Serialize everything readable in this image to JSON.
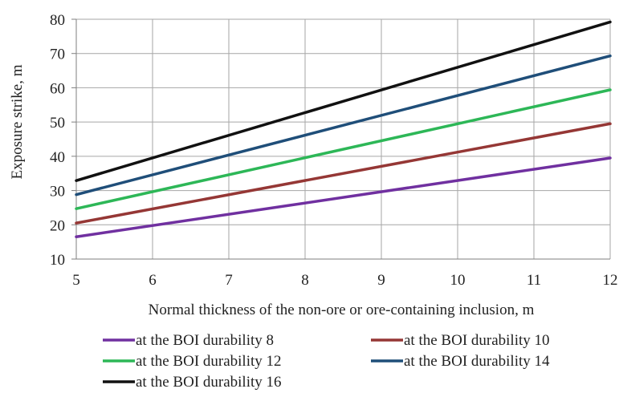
{
  "chart_data": {
    "type": "line",
    "xlabel": "Normal thickness of the non-ore or ore-containing inclusion, m",
    "ylabel": "Exposure strike, m",
    "xlim": [
      5,
      12
    ],
    "ylim": [
      10,
      80
    ],
    "x_ticks": [
      5,
      6,
      7,
      8,
      9,
      10,
      11,
      12
    ],
    "y_ticks": [
      10,
      20,
      30,
      40,
      50,
      60,
      70,
      80
    ],
    "grid": true,
    "legend_position": "bottom",
    "series": [
      {
        "name": "at the BOI durability 8",
        "color": "#7030a0",
        "x": [
          5,
          12
        ],
        "y": [
          16.5,
          39.5
        ]
      },
      {
        "name": "at the BOI durability 10",
        "color": "#953735",
        "x": [
          5,
          12
        ],
        "y": [
          20.5,
          49.5
        ]
      },
      {
        "name": "at the BOI durability 12",
        "color": "#2db757",
        "x": [
          5,
          12
        ],
        "y": [
          24.7,
          59.4
        ]
      },
      {
        "name": "at the BOI durability 14",
        "color": "#1f4e79",
        "x": [
          5,
          12
        ],
        "y": [
          28.8,
          69.3
        ]
      },
      {
        "name": "at the BOI durability 16",
        "color": "#111111",
        "x": [
          5,
          12
        ],
        "y": [
          32.9,
          79.2
        ]
      }
    ]
  }
}
